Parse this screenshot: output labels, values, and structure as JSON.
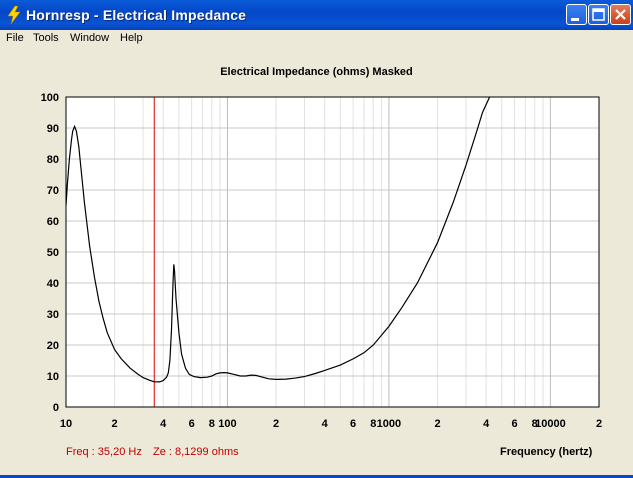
{
  "window": {
    "title": "Hornresp - Electrical Impedance",
    "icon": "lightning-bolt-icon",
    "controls": [
      "minimize-icon",
      "maximize-icon",
      "close-icon"
    ]
  },
  "menu": [
    "File",
    "Tools",
    "Window",
    "Help"
  ],
  "readout": {
    "freq": "Freq : 35,20 Hz",
    "ze": "Ze : 8,1299 ohms"
  },
  "chart_data": {
    "type": "line",
    "title": "Electrical Impedance (ohms)   Masked",
    "xlabel": "Frequency (hertz)",
    "ylabel": "",
    "x_scale": "log",
    "xlim": [
      10,
      20000
    ],
    "ylim": [
      0,
      100
    ],
    "y_ticks": [
      0,
      10,
      20,
      30,
      40,
      50,
      60,
      70,
      80,
      90,
      100
    ],
    "x_tick_labels": [
      {
        "x": 10,
        "label": "10"
      },
      {
        "x": 20,
        "label": "2"
      },
      {
        "x": 40,
        "label": "4"
      },
      {
        "x": 60,
        "label": "6"
      },
      {
        "x": 80,
        "label": "8"
      },
      {
        "x": 100,
        "label": "100"
      },
      {
        "x": 200,
        "label": "2"
      },
      {
        "x": 400,
        "label": "4"
      },
      {
        "x": 600,
        "label": "6"
      },
      {
        "x": 800,
        "label": "8"
      },
      {
        "x": 1000,
        "label": "1000"
      },
      {
        "x": 2000,
        "label": "2"
      },
      {
        "x": 4000,
        "label": "4"
      },
      {
        "x": 6000,
        "label": "6"
      },
      {
        "x": 8000,
        "label": "8"
      },
      {
        "x": 10000,
        "label": "10000"
      },
      {
        "x": 20000,
        "label": "2"
      }
    ],
    "grid": true,
    "cursor": {
      "x": 35.2,
      "color": "#e00000"
    },
    "series": [
      {
        "color": "#000000",
        "points": [
          [
            10,
            65
          ],
          [
            10.2,
            72
          ],
          [
            10.5,
            80
          ],
          [
            10.8,
            86
          ],
          [
            11,
            89
          ],
          [
            11.3,
            90.5
          ],
          [
            11.6,
            89
          ],
          [
            12,
            84
          ],
          [
            12.5,
            75
          ],
          [
            13,
            66
          ],
          [
            14,
            52
          ],
          [
            15,
            42
          ],
          [
            16,
            34
          ],
          [
            17,
            28.5
          ],
          [
            18,
            24
          ],
          [
            20,
            18.5
          ],
          [
            22,
            15.5
          ],
          [
            25,
            12.5
          ],
          [
            28,
            10.5
          ],
          [
            30,
            9.5
          ],
          [
            33,
            8.6
          ],
          [
            35.2,
            8.13
          ],
          [
            38,
            8.1
          ],
          [
            40,
            8.5
          ],
          [
            42,
            9.6
          ],
          [
            43,
            11
          ],
          [
            44,
            15
          ],
          [
            45,
            25
          ],
          [
            46,
            40
          ],
          [
            46.5,
            46
          ],
          [
            47,
            44
          ],
          [
            48,
            35
          ],
          [
            50,
            24
          ],
          [
            52,
            17
          ],
          [
            55,
            12.5
          ],
          [
            58,
            10.5
          ],
          [
            62,
            9.8
          ],
          [
            68,
            9.5
          ],
          [
            75,
            9.6
          ],
          [
            80,
            10
          ],
          [
            85,
            10.7
          ],
          [
            90,
            11
          ],
          [
            95,
            11.1
          ],
          [
            100,
            11
          ],
          [
            110,
            10.5
          ],
          [
            120,
            10
          ],
          [
            130,
            10
          ],
          [
            140,
            10.3
          ],
          [
            150,
            10.2
          ],
          [
            165,
            9.6
          ],
          [
            180,
            9.1
          ],
          [
            200,
            8.9
          ],
          [
            230,
            9
          ],
          [
            260,
            9.3
          ],
          [
            300,
            9.8
          ],
          [
            350,
            10.8
          ],
          [
            400,
            11.8
          ],
          [
            500,
            13.5
          ],
          [
            600,
            15.5
          ],
          [
            700,
            17.5
          ],
          [
            800,
            20
          ],
          [
            1000,
            26
          ],
          [
            1200,
            32
          ],
          [
            1500,
            40
          ],
          [
            2000,
            53
          ],
          [
            2500,
            66
          ],
          [
            3000,
            78
          ],
          [
            3500,
            89
          ],
          [
            3800,
            95
          ],
          [
            4200,
            100
          ]
        ]
      }
    ]
  }
}
